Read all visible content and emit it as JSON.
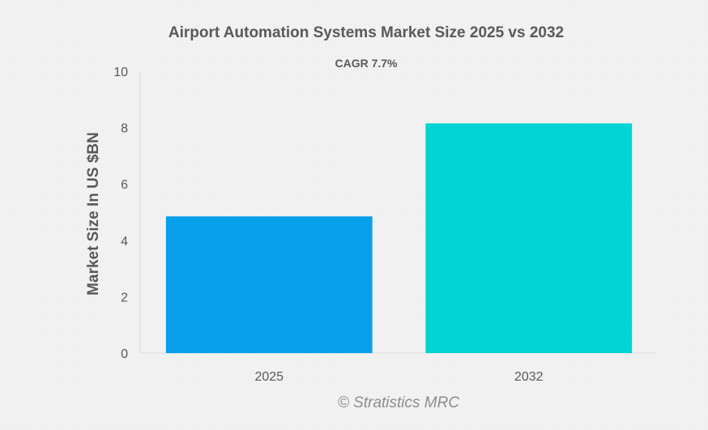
{
  "chart_data": {
    "type": "bar",
    "title": "Airport Automation Systems Market Size 2025 vs 2032",
    "subtitle": "CAGR 7.7%",
    "xlabel": "",
    "ylabel": "Market Size In US $BN",
    "categories": [
      "2025",
      "2032"
    ],
    "values": [
      4.85,
      8.15
    ],
    "colors": [
      "#069fe9",
      "#02d3d3"
    ],
    "ylim": [
      0,
      10
    ],
    "yticks": [
      0,
      2,
      4,
      6,
      8,
      10
    ],
    "grid": false,
    "legend": "none",
    "credit": "© Stratistics MRC"
  }
}
